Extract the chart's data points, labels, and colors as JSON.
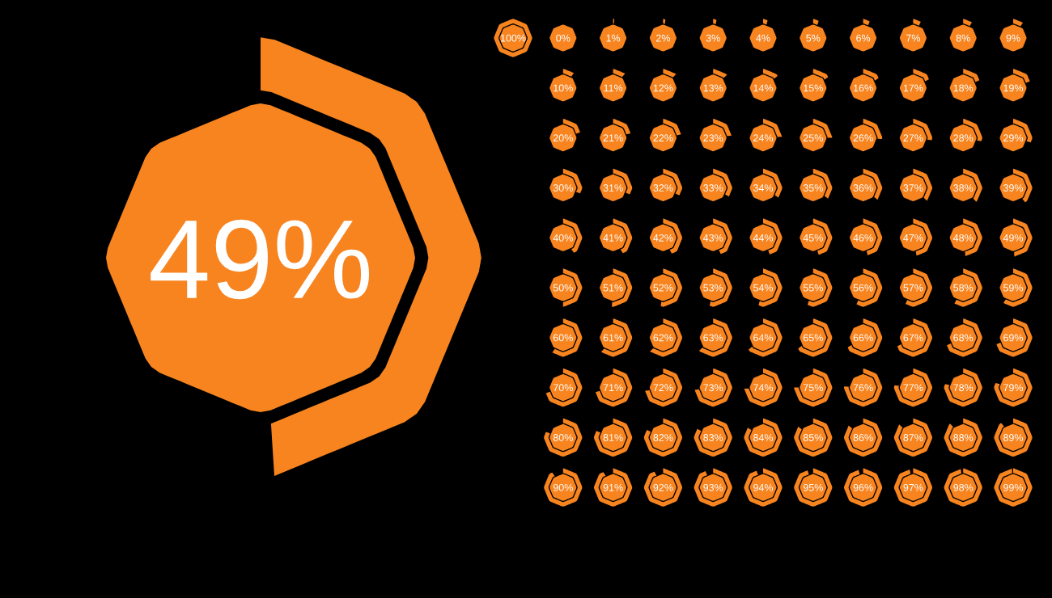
{
  "chart_data": {
    "type": "other",
    "color": "#f7841f",
    "values": [
      49,
      100,
      0,
      1,
      2,
      3,
      4,
      5,
      6,
      7,
      8,
      9,
      10,
      11,
      12,
      13,
      14,
      15,
      16,
      17,
      18,
      19,
      20,
      21,
      22,
      23,
      24,
      25,
      26,
      27,
      28,
      29,
      30,
      31,
      32,
      33,
      34,
      35,
      36,
      37,
      38,
      39,
      40,
      41,
      42,
      43,
      44,
      45,
      46,
      47,
      48,
      49,
      50,
      51,
      52,
      53,
      54,
      55,
      56,
      57,
      58,
      59,
      60,
      61,
      62,
      63,
      64,
      65,
      66,
      67,
      68,
      69,
      70,
      71,
      72,
      73,
      74,
      75,
      76,
      77,
      78,
      79,
      80,
      81,
      82,
      83,
      84,
      85,
      86,
      87,
      88,
      89,
      90,
      91,
      92,
      93,
      94,
      95,
      96,
      97,
      98,
      99
    ],
    "value_labels": [
      "49%",
      "100%",
      "0%",
      "1%",
      "2%",
      "3%",
      "4%",
      "5%",
      "6%",
      "7%",
      "8%",
      "9%",
      "10%",
      "11%",
      "12%",
      "13%",
      "14%",
      "15%",
      "16%",
      "17%",
      "18%",
      "19%",
      "20%",
      "21%",
      "22%",
      "23%",
      "24%",
      "25%",
      "26%",
      "27%",
      "28%",
      "29%",
      "30%",
      "31%",
      "32%",
      "33%",
      "34%",
      "35%",
      "36%",
      "37%",
      "38%",
      "39%",
      "40%",
      "41%",
      "42%",
      "43%",
      "44%",
      "45%",
      "46%",
      "47%",
      "48%",
      "49%",
      "50%",
      "51%",
      "52%",
      "53%",
      "54%",
      "55%",
      "56%",
      "57%",
      "58%",
      "59%",
      "60%",
      "61%",
      "62%",
      "63%",
      "64%",
      "65%",
      "66%",
      "67%",
      "68%",
      "69%",
      "70%",
      "71%",
      "72%",
      "73%",
      "74%",
      "75%",
      "76%",
      "77%",
      "78%",
      "79%",
      "80%",
      "81%",
      "82%",
      "83%",
      "84%",
      "85%",
      "86%",
      "87%",
      "88%",
      "89%",
      "90%",
      "91%",
      "92%",
      "93%",
      "94%",
      "95%",
      "96%",
      "97%",
      "98%",
      "99%"
    ]
  }
}
